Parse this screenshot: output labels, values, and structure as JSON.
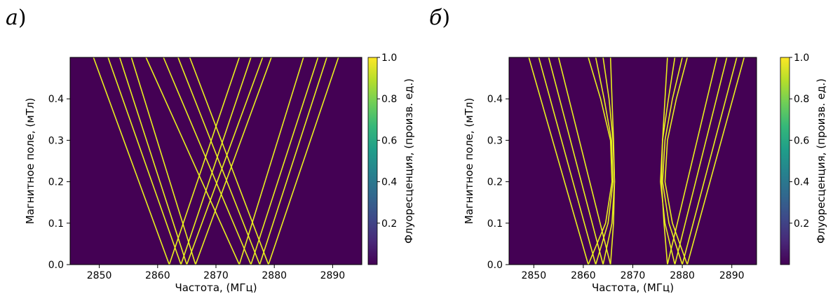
{
  "panels": [
    {
      "letter": "а",
      "paren": ")"
    },
    {
      "letter": "б",
      "paren": ")"
    }
  ],
  "colors": {
    "background": "#440154",
    "line": "#e8f01e",
    "colormap": "viridis"
  },
  "chart_data": [
    {
      "type": "heatmap",
      "title": "",
      "xlabel": "Частота, (МГц)",
      "ylabel": "Магнитное поле, (мТл)",
      "colorbar_label": "Флуоресценция, (произв. ед.)",
      "xlim": [
        2845,
        2895
      ],
      "ylim": [
        0,
        0.5
      ],
      "xticks": [
        2850,
        2860,
        2870,
        2880,
        2890
      ],
      "yticks": [
        0.0,
        0.1,
        0.2,
        0.3,
        0.4
      ],
      "colorbar_ticks": [
        0.2,
        0.4,
        0.6,
        0.8,
        1.0
      ],
      "colorbar_range": [
        0,
        1.0
      ],
      "lines": [
        {
          "x": [
            2862.0,
            2849.0
          ],
          "y": [
            0.0,
            0.5
          ]
        },
        {
          "x": [
            2864.0,
            2851.5
          ],
          "y": [
            0.0,
            0.5
          ]
        },
        {
          "x": [
            2865.0,
            2853.5
          ],
          "y": [
            0.0,
            0.5
          ]
        },
        {
          "x": [
            2866.5,
            2855.5
          ],
          "y": [
            0.0,
            0.5
          ]
        },
        {
          "x": [
            2874.0,
            2858.0
          ],
          "y": [
            0.0,
            0.5
          ]
        },
        {
          "x": [
            2876.0,
            2861.0
          ],
          "y": [
            0.0,
            0.5
          ]
        },
        {
          "x": [
            2877.5,
            2863.5
          ],
          "y": [
            0.0,
            0.5
          ]
        },
        {
          "x": [
            2879.0,
            2865.5
          ],
          "y": [
            0.0,
            0.5
          ]
        },
        {
          "x": [
            2862.0,
            2874.0
          ],
          "y": [
            0.0,
            0.5
          ]
        },
        {
          "x": [
            2864.0,
            2876.0
          ],
          "y": [
            0.0,
            0.5
          ]
        },
        {
          "x": [
            2865.0,
            2878.0
          ],
          "y": [
            0.0,
            0.5
          ]
        },
        {
          "x": [
            2866.5,
            2879.5
          ],
          "y": [
            0.0,
            0.5
          ]
        },
        {
          "x": [
            2874.0,
            2885.0
          ],
          "y": [
            0.0,
            0.5
          ]
        },
        {
          "x": [
            2876.0,
            2887.5
          ],
          "y": [
            0.0,
            0.5
          ]
        },
        {
          "x": [
            2877.5,
            2889.0
          ],
          "y": [
            0.0,
            0.5
          ]
        },
        {
          "x": [
            2879.0,
            2891.0
          ],
          "y": [
            0.0,
            0.5
          ]
        }
      ]
    },
    {
      "type": "heatmap",
      "title": "",
      "xlabel": "Частота, (МГц)",
      "ylabel": "Магнитное поле, (мТл)",
      "colorbar_label": "Флуоресценция, (произв. ед.)",
      "xlim": [
        2845,
        2895
      ],
      "ylim": [
        0,
        0.5
      ],
      "xticks": [
        2850,
        2860,
        2870,
        2880,
        2890
      ],
      "yticks": [
        0.0,
        0.1,
        0.2,
        0.3,
        0.4
      ],
      "colorbar_ticks": [
        0.2,
        0.4,
        0.6,
        0.8,
        1.0
      ],
      "colorbar_range": [
        0,
        1.0
      ],
      "lines": [
        {
          "x": [
            2861.0,
            2849.0
          ],
          "y": [
            0.0,
            0.5
          ]
        },
        {
          "x": [
            2862.5,
            2851.0
          ],
          "y": [
            0.0,
            0.5
          ]
        },
        {
          "x": [
            2864.0,
            2853.0
          ],
          "y": [
            0.0,
            0.5
          ]
        },
        {
          "x": [
            2865.5,
            2855.0
          ],
          "y": [
            0.0,
            0.5
          ]
        },
        {
          "x": [
            2877.0,
            2887.0
          ],
          "y": [
            0.0,
            0.5
          ]
        },
        {
          "x": [
            2878.5,
            2889.0
          ],
          "y": [
            0.0,
            0.5
          ]
        },
        {
          "x": [
            2880.0,
            2891.0
          ],
          "y": [
            0.0,
            0.5
          ]
        },
        {
          "x": [
            2881.0,
            2892.5
          ],
          "y": [
            0.0,
            0.5
          ]
        },
        {
          "x": [
            2861.0,
            2864.5,
            2865.8,
            2865.5,
            2863.5,
            2861.0
          ],
          "y": [
            0.0,
            0.1,
            0.2,
            0.3,
            0.4,
            0.5
          ]
        },
        {
          "x": [
            2862.5,
            2865.0,
            2866.0,
            2865.7,
            2864.2,
            2862.5
          ],
          "y": [
            0.0,
            0.1,
            0.2,
            0.3,
            0.4,
            0.5
          ]
        },
        {
          "x": [
            2864.0,
            2865.8,
            2866.3,
            2866.0,
            2865.2,
            2864.0
          ],
          "y": [
            0.0,
            0.1,
            0.2,
            0.3,
            0.4,
            0.5
          ]
        },
        {
          "x": [
            2865.5,
            2866.1,
            2866.3,
            2866.1,
            2865.8,
            2865.5
          ],
          "y": [
            0.0,
            0.1,
            0.2,
            0.3,
            0.4,
            0.5
          ]
        },
        {
          "x": [
            2877.0,
            2876.3,
            2875.8,
            2876.0,
            2876.5,
            2877.0
          ],
          "y": [
            0.0,
            0.1,
            0.2,
            0.3,
            0.4,
            0.5
          ]
        },
        {
          "x": [
            2878.5,
            2876.5,
            2875.6,
            2876.0,
            2877.2,
            2878.5
          ],
          "y": [
            0.0,
            0.1,
            0.2,
            0.3,
            0.4,
            0.5
          ]
        },
        {
          "x": [
            2880.0,
            2877.3,
            2876.0,
            2876.5,
            2878.0,
            2880.0
          ],
          "y": [
            0.0,
            0.1,
            0.2,
            0.3,
            0.4,
            0.5
          ]
        },
        {
          "x": [
            2881.0,
            2878.0,
            2876.5,
            2877.0,
            2878.8,
            2881.0
          ],
          "y": [
            0.0,
            0.1,
            0.2,
            0.3,
            0.4,
            0.5
          ]
        }
      ]
    }
  ]
}
